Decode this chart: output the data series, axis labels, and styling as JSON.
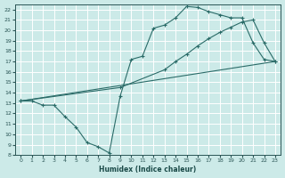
{
  "xlabel": "Humidex (Indice chaleur)",
  "xlim": [
    -0.5,
    23.5
  ],
  "ylim": [
    8,
    22.5
  ],
  "xticks": [
    0,
    1,
    2,
    3,
    4,
    5,
    6,
    7,
    8,
    9,
    10,
    11,
    12,
    13,
    14,
    15,
    16,
    17,
    18,
    19,
    20,
    21,
    22,
    23
  ],
  "yticks": [
    8,
    9,
    10,
    11,
    12,
    13,
    14,
    15,
    16,
    17,
    18,
    19,
    20,
    21,
    22
  ],
  "bg_color": "#cceae8",
  "grid_color": "#b0d8d5",
  "line_color": "#2a6b68",
  "line1_x": [
    0,
    1,
    2,
    3,
    4,
    5,
    6,
    7,
    8,
    9,
    10,
    11,
    12,
    13,
    14,
    15,
    16,
    17,
    18,
    19,
    20,
    21,
    22,
    23
  ],
  "line1_y": [
    13.2,
    13.2,
    12.8,
    12.8,
    11.7,
    10.7,
    9.2,
    8.8,
    8.2,
    13.7,
    17.2,
    17.5,
    20.2,
    20.5,
    21.2,
    22.3,
    22.2,
    21.8,
    21.5,
    21.2,
    21.2,
    18.8,
    17.2,
    17.0
  ],
  "line2_x": [
    0,
    23
  ],
  "line2_y": [
    13.2,
    17.0
  ],
  "line3_x": [
    0,
    9,
    13,
    14,
    15,
    16,
    17,
    18,
    19,
    20,
    21,
    22,
    23
  ],
  "line3_y": [
    13.2,
    14.5,
    16.2,
    17.0,
    17.7,
    18.5,
    19.2,
    19.8,
    20.3,
    20.8,
    21.0,
    18.8,
    17.0
  ]
}
